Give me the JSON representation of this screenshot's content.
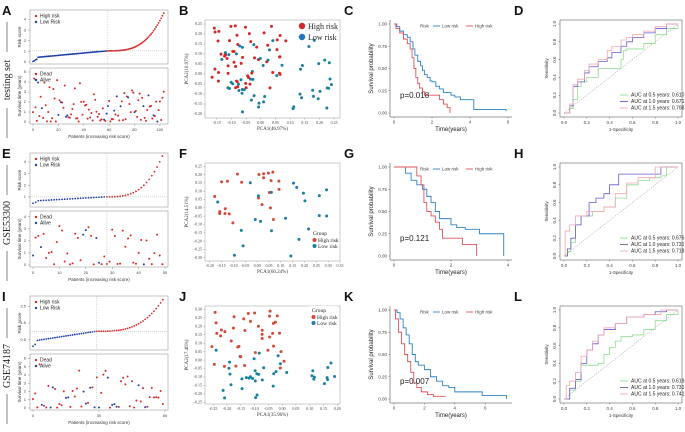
{
  "figure": {
    "rows": [
      {
        "cohort": "testing set",
        "panels": [
          "A",
          "B",
          "C",
          "D"
        ]
      },
      {
        "cohort": "GSE53300",
        "panels": [
          "E",
          "F",
          "G",
          "H"
        ]
      },
      {
        "cohort": "GSE74187",
        "panels": [
          "I",
          "J",
          "K",
          "L"
        ]
      }
    ],
    "colors": {
      "high": "#d62728",
      "low": "#1f3fa8",
      "pca_high": "#d24a3a",
      "pca_low": "#1b7fa0",
      "km_low": "#2b83c6",
      "km_high": "#e0505a",
      "roc_05": "#8fdc8f",
      "roc_10": "#6a5acd",
      "roc_15": "#f4a6b0"
    }
  },
  "chart_data": [
    {
      "panel": "A",
      "type": "scatter",
      "cohort": "testing set",
      "risk_plot": {
        "ylabel": "Risk score",
        "yticks": [
          0,
          1,
          2,
          3,
          4
        ],
        "ylim": [
          0,
          4.7
        ],
        "xlim": [
          0,
          104
        ],
        "cutoff_index": 59,
        "cutoff_score": 1.05,
        "legend": [
          "High risk",
          "Low Risk"
        ],
        "n": 104,
        "min": 0.05,
        "max": 4.6
      },
      "survival_plot": {
        "ylabel": "Survival time (years)",
        "yticks": [
          0,
          1,
          2,
          3,
          4,
          5
        ],
        "ylim": [
          0,
          5.2
        ],
        "xlabel": "Patients (increasing risk score)",
        "xticks": [
          0,
          20,
          40,
          60,
          80,
          100
        ],
        "legend": [
          "Dead",
          "Alive"
        ]
      }
    },
    {
      "panel": "B",
      "type": "scatter",
      "cohort": "testing set",
      "xlabel": "PCA1(46.97%)",
      "ylabel": "PCA2(10.97%)",
      "xticks": [
        -0.15,
        -0.1,
        -0.05,
        0.0,
        0.05,
        0.1,
        0.15,
        0.2,
        0.25
      ],
      "yticks": [
        -0.2,
        -0.15,
        -0.1,
        -0.05,
        0.0,
        0.05,
        0.1,
        0.15,
        0.2,
        0.25
      ],
      "xlim": [
        -0.19,
        0.27
      ],
      "ylim": [
        -0.22,
        0.27
      ],
      "legend": [
        "High risk",
        "Low risk"
      ]
    },
    {
      "panel": "C",
      "type": "line",
      "cohort": "testing set",
      "xlabel": "Time(years)",
      "ylabel": "Survival probability",
      "xticks": [
        0,
        2,
        4,
        6
      ],
      "yticks": [
        0.0,
        0.25,
        0.5,
        0.75,
        1.0
      ],
      "xlim": [
        0,
        6
      ],
      "ylim": [
        0,
        1
      ],
      "legend_title": "Risk",
      "legend": [
        "Low risk",
        "High risk"
      ],
      "p_value": "p=0.018",
      "series": [
        {
          "name": "Low risk",
          "x": [
            0,
            0.15,
            0.3,
            0.5,
            0.7,
            0.85,
            1.0,
            1.1,
            1.25,
            1.4,
            1.5,
            1.6,
            1.75,
            1.9,
            2.0,
            2.2,
            2.4,
            2.6,
            2.8,
            3.0,
            3.2,
            3.5,
            4.2,
            5.0,
            5.9
          ],
          "y": [
            1,
            0.97,
            0.92,
            0.88,
            0.85,
            0.8,
            0.72,
            0.65,
            0.58,
            0.53,
            0.48,
            0.43,
            0.4,
            0.36,
            0.35,
            0.3,
            0.27,
            0.23,
            0.23,
            0.2,
            0.18,
            0.15,
            0.04,
            0.04,
            0.02
          ]
        },
        {
          "name": "High risk",
          "x": [
            0,
            0.1,
            0.3,
            0.5,
            0.7,
            0.85,
            0.95,
            1.05,
            1.15,
            1.25,
            1.35,
            1.5,
            1.6,
            2.0,
            2.4,
            2.6,
            2.8,
            2.95
          ],
          "y": [
            1,
            0.95,
            0.9,
            0.83,
            0.78,
            0.72,
            0.62,
            0.5,
            0.4,
            0.33,
            0.28,
            0.24,
            0.2,
            0.2,
            0.15,
            0.1,
            0.06,
            0.0
          ]
        }
      ]
    },
    {
      "panel": "D",
      "type": "line",
      "cohort": "testing set",
      "xlabel": "1-Specificity",
      "ylabel": "Sensitivity",
      "xticks": [
        0.0,
        0.2,
        0.4,
        0.6,
        0.8,
        1.0
      ],
      "yticks": [
        0.0,
        0.2,
        0.4,
        0.6,
        0.8,
        1.0
      ],
      "xlim": [
        0,
        1
      ],
      "ylim": [
        0,
        1
      ],
      "series": [
        {
          "name": "AUC at 0.5 years: 0.610",
          "x": [
            0,
            0.05,
            0.08,
            0.12,
            0.15,
            0.2,
            0.3,
            0.45,
            0.5,
            0.52,
            0.55,
            0.6,
            0.7,
            0.8,
            0.9,
            1.0
          ],
          "y": [
            0,
            0.05,
            0.15,
            0.3,
            0.35,
            0.4,
            0.5,
            0.5,
            0.6,
            0.7,
            0.72,
            0.72,
            0.78,
            0.88,
            0.95,
            1.0
          ]
        },
        {
          "name": "AUC at 1.0 years: 0.671",
          "x": [
            0,
            0.05,
            0.08,
            0.12,
            0.18,
            0.22,
            0.3,
            0.38,
            0.42,
            0.5,
            0.55,
            0.6,
            0.7,
            0.8,
            0.9,
            1.0
          ],
          "y": [
            0,
            0.08,
            0.3,
            0.35,
            0.45,
            0.52,
            0.58,
            0.62,
            0.68,
            0.75,
            0.8,
            0.85,
            0.9,
            0.95,
            1.0,
            1.0
          ]
        },
        {
          "name": "AUC at 1.5 years: 0.708",
          "x": [
            0,
            0.05,
            0.08,
            0.12,
            0.18,
            0.22,
            0.3,
            0.38,
            0.42,
            0.5,
            0.55,
            0.6,
            0.7,
            0.8,
            0.9,
            1.0
          ],
          "y": [
            0,
            0.1,
            0.32,
            0.38,
            0.48,
            0.55,
            0.6,
            0.7,
            0.75,
            0.82,
            0.85,
            0.88,
            0.92,
            0.97,
            1.0,
            1.0
          ]
        }
      ]
    },
    {
      "panel": "E",
      "type": "scatter",
      "cohort": "GSE53300",
      "risk_plot": {
        "ylabel": "Risk score",
        "yticks": [
          1,
          2,
          3,
          4
        ],
        "ylim": [
          0.3,
          4.6
        ],
        "xlim": [
          0,
          50
        ],
        "cutoff_index": 28,
        "cutoff_score": 1.0,
        "legend": [
          "High risk",
          "Low Risk"
        ],
        "n": 50,
        "min": 0.45,
        "max": 4.5
      },
      "survival_plot": {
        "ylabel": "Survival time (years)",
        "yticks": [
          0,
          1,
          2,
          3,
          4
        ],
        "ylim": [
          0,
          4.3
        ],
        "xlabel": "Patients (increasing risk score)",
        "xticks": [
          0,
          10,
          20,
          30,
          40,
          50
        ],
        "legend": [
          "Dead",
          "Alive"
        ]
      }
    },
    {
      "panel": "F",
      "type": "scatter",
      "cohort": "GSE53300",
      "xlabel": "PCA1(60.24%)",
      "ylabel": "PCA2(14.51%)",
      "xticks": [
        -0.2,
        -0.15,
        -0.1,
        -0.05,
        0.0,
        0.05,
        0.1,
        0.15,
        0.2,
        0.25,
        0.3,
        0.35
      ],
      "yticks": [
        -0.3,
        -0.25,
        -0.2,
        -0.15,
        -0.1,
        -0.05,
        0.0,
        0.05,
        0.1,
        0.15,
        0.2,
        0.25
      ],
      "xlim": [
        -0.22,
        0.35
      ],
      "ylim": [
        -0.32,
        0.27
      ],
      "legend_title": "Group",
      "legend": [
        "High risk",
        "Low risk"
      ]
    },
    {
      "panel": "G",
      "type": "line",
      "cohort": "GSE53300",
      "xlabel": "Time(years)",
      "ylabel": "Survival probability",
      "xticks": [
        0,
        2,
        4
      ],
      "yticks": [
        0.0,
        0.25,
        0.5,
        0.75,
        1.0
      ],
      "xlim": [
        0,
        4
      ],
      "ylim": [
        0,
        1
      ],
      "legend_title": "Risk",
      "legend": [
        "Low risk",
        "High risk"
      ],
      "p_value": "p=0.121",
      "series": [
        {
          "name": "Low risk",
          "x": [
            0,
            0.4,
            0.6,
            0.8,
            1.0,
            1.15,
            1.3,
            1.45,
            1.6,
            1.8,
            2.0,
            2.2,
            2.5,
            3.0,
            3.8,
            3.85
          ],
          "y": [
            1,
            0.93,
            0.85,
            0.8,
            0.75,
            0.67,
            0.6,
            0.5,
            0.42,
            0.42,
            0.35,
            0.32,
            0.3,
            0.25,
            0.25,
            0.0
          ]
        },
        {
          "name": "High risk",
          "x": [
            0,
            0.6,
            0.8,
            0.95,
            1.05,
            1.15,
            1.3,
            1.45,
            1.6,
            1.7,
            2.0,
            2.4,
            2.8,
            2.9
          ],
          "y": [
            1,
            1,
            0.9,
            0.8,
            0.6,
            0.5,
            0.45,
            0.38,
            0.3,
            0.2,
            0.2,
            0.13,
            0.13,
            0.0
          ]
        }
      ]
    },
    {
      "panel": "H",
      "type": "line",
      "cohort": "GSE53300",
      "xlabel": "1-Specificity",
      "ylabel": "Sensitivity",
      "xticks": [
        0.0,
        0.2,
        0.4,
        0.6,
        0.8,
        1.0
      ],
      "yticks": [
        0.0,
        0.2,
        0.4,
        0.6,
        0.8,
        1.0
      ],
      "xlim": [
        0,
        1
      ],
      "ylim": [
        0,
        1
      ],
      "series": [
        {
          "name": "AUC at 0.5 years: 0.676",
          "x": [
            0,
            0.03,
            0.06,
            0.1,
            0.15,
            0.25,
            0.35,
            0.45,
            0.55,
            0.65,
            0.75,
            0.85,
            0.9,
            1.0
          ],
          "y": [
            0,
            0.05,
            0.15,
            0.35,
            0.45,
            0.5,
            0.55,
            0.65,
            0.8,
            0.85,
            0.88,
            0.9,
            1.0,
            1.0
          ]
        },
        {
          "name": "AUC at 1.0 years: 0.731",
          "x": [
            0,
            0.03,
            0.06,
            0.1,
            0.15,
            0.22,
            0.28,
            0.35,
            0.4,
            0.48,
            0.55,
            0.7,
            0.85,
            1.0
          ],
          "y": [
            0,
            0.08,
            0.2,
            0.35,
            0.45,
            0.6,
            0.65,
            0.7,
            0.8,
            0.92,
            0.92,
            0.92,
            1.0,
            1.0
          ]
        },
        {
          "name": "AUC at 1.5 years: 0.718",
          "x": [
            0,
            0.01,
            0.05,
            0.1,
            0.2,
            0.28,
            0.35,
            0.45,
            0.55,
            0.65,
            0.75,
            0.8,
            1.0
          ],
          "y": [
            0,
            0.28,
            0.35,
            0.45,
            0.5,
            0.5,
            0.55,
            0.7,
            0.82,
            0.88,
            0.88,
            1.0,
            1.0
          ]
        }
      ]
    },
    {
      "panel": "I",
      "type": "scatter",
      "cohort": "GSE74187",
      "risk_plot": {
        "ylabel": "Risk score",
        "yticks": [
          0.5,
          1.5,
          2.5
        ],
        "ylim": [
          0,
          3.0
        ],
        "xlim": [
          0,
          60
        ],
        "cutoff_index": 29,
        "cutoff_score": 1.0,
        "legend": [
          "High risk",
          "Low Risk"
        ],
        "n": 60,
        "min": 0.1,
        "max": 2.9
      },
      "survival_plot": {
        "ylabel": "Survival time (years)",
        "yticks": [
          0,
          1,
          2,
          3,
          4,
          5,
          6
        ],
        "ylim": [
          0,
          6.3
        ],
        "xlabel": "Patients (increasing risk score)",
        "xticks": [
          0,
          30,
          60
        ],
        "legend": [
          "Dead",
          "Alive"
        ]
      }
    },
    {
      "panel": "J",
      "type": "scatter",
      "cohort": "GSE74187",
      "xlabel": "PCA1(35.96%)",
      "ylabel": "PCA2(17.46%)",
      "xticks": [
        -0.25,
        -0.2,
        -0.15,
        -0.1,
        -0.05,
        0.0,
        0.05,
        0.1,
        0.15,
        0.2
      ],
      "yticks": [
        -0.25,
        -0.2,
        -0.15,
        -0.1,
        -0.05,
        0.0,
        0.05,
        0.1,
        0.15,
        0.2,
        0.25,
        0.3
      ],
      "xlim": [
        -0.28,
        0.21
      ],
      "ylim": [
        -0.26,
        0.32
      ],
      "legend_title": "Group",
      "legend": [
        "High risk",
        "Low risk"
      ]
    },
    {
      "panel": "K",
      "type": "line",
      "cohort": "GSE74187",
      "xlabel": "Time(years)",
      "ylabel": "Survival probability",
      "xticks": [
        0,
        2,
        4,
        6
      ],
      "yticks": [
        0.0,
        0.25,
        0.5,
        0.75,
        1.0
      ],
      "xlim": [
        0,
        7.5
      ],
      "ylim": [
        0,
        1
      ],
      "legend_title": "Risk",
      "legend": [
        "Low risk",
        "High risk"
      ],
      "p_value": "p=0.007",
      "series": [
        {
          "name": "Low risk",
          "x": [
            0,
            0.2,
            0.4,
            0.6,
            0.8,
            1.0,
            1.2,
            1.4,
            1.6,
            2.0,
            2.4,
            2.8,
            3.2,
            3.6,
            4.0,
            5.0,
            5.8,
            7.4
          ],
          "y": [
            1,
            0.97,
            0.9,
            0.8,
            0.72,
            0.62,
            0.5,
            0.42,
            0.38,
            0.33,
            0.25,
            0.2,
            0.15,
            0.13,
            0.08,
            0.08,
            0.04,
            0.0
          ]
        },
        {
          "name": "High risk",
          "x": [
            0,
            0.1,
            0.3,
            0.5,
            0.7,
            0.9,
            1.1,
            1.3,
            1.5,
            1.8,
            2.2,
            2.6,
            3.4
          ],
          "y": [
            1,
            0.9,
            0.75,
            0.62,
            0.5,
            0.42,
            0.3,
            0.18,
            0.13,
            0.08,
            0.05,
            0.03,
            0.03
          ]
        }
      ]
    },
    {
      "panel": "L",
      "type": "line",
      "cohort": "GSE74187",
      "xlabel": "1-Specificity",
      "ylabel": "Sensitivity",
      "xticks": [
        0.0,
        0.2,
        0.4,
        0.6,
        0.8,
        1.0
      ],
      "yticks": [
        0.0,
        0.2,
        0.4,
        0.6,
        0.8,
        1.0
      ],
      "xlim": [
        0,
        1
      ],
      "ylim": [
        0,
        1
      ],
      "series": [
        {
          "name": "AUC at 0.5 years: 0.619",
          "x": [
            0,
            0.05,
            0.1,
            0.15,
            0.25,
            0.3,
            0.35,
            0.4,
            0.45,
            0.5,
            0.6,
            0.7,
            0.8,
            0.9,
            1.0
          ],
          "y": [
            0,
            0.1,
            0.2,
            0.38,
            0.38,
            0.4,
            0.5,
            0.58,
            0.65,
            0.7,
            0.72,
            0.78,
            0.88,
            0.95,
            1.0
          ]
        },
        {
          "name": "AUC at 1.0 years: 0.731",
          "x": [
            0,
            0.05,
            0.1,
            0.15,
            0.2,
            0.25,
            0.3,
            0.35,
            0.45,
            0.55,
            0.7,
            0.8,
            0.9,
            1.0
          ],
          "y": [
            0,
            0.12,
            0.22,
            0.4,
            0.55,
            0.62,
            0.72,
            0.78,
            0.85,
            0.92,
            0.95,
            0.98,
            1.0,
            1.0
          ]
        },
        {
          "name": "AUC at 1.5 years: 0.741",
          "x": [
            0,
            0.02,
            0.05,
            0.1,
            0.15,
            0.2,
            0.25,
            0.3,
            0.35,
            0.45,
            0.55,
            0.7,
            0.85,
            1.0
          ],
          "y": [
            0,
            0.15,
            0.2,
            0.3,
            0.48,
            0.55,
            0.65,
            0.72,
            0.8,
            0.85,
            0.92,
            0.95,
            1.0,
            1.0
          ]
        }
      ]
    }
  ]
}
